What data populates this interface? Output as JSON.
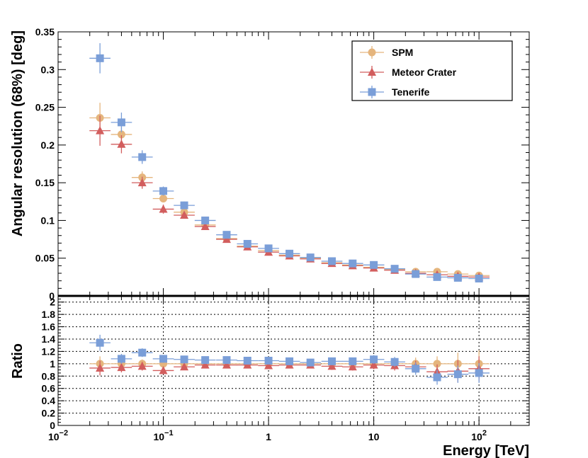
{
  "chart_data": {
    "type": "scatter",
    "x_label": "Energy [TeV]",
    "x_scale": "log",
    "x_range": [
      0.01,
      300
    ],
    "x_ticks": [
      {
        "value": 0.01,
        "base": "10",
        "exp": "−2"
      },
      {
        "value": 0.1,
        "base": "10",
        "exp": "−1"
      },
      {
        "value": 1,
        "base": "1",
        "exp": ""
      },
      {
        "value": 10,
        "base": "10",
        "exp": ""
      },
      {
        "value": 100,
        "base": "10",
        "exp": "2"
      }
    ],
    "top_panel": {
      "y_label": "Angular resolution (68%) [deg]",
      "y_range": [
        0,
        0.35
      ],
      "y_ticks": [
        "0",
        "0.05",
        "0.1",
        "0.15",
        "0.2",
        "0.25",
        "0.3",
        "0.35"
      ],
      "grid": false,
      "legend_position": "top-right"
    },
    "bottom_panel": {
      "y_label": "Ratio",
      "y_range": [
        0,
        2.1
      ],
      "y_ticks": [
        "0",
        "0.2",
        "0.4",
        "0.6",
        "0.8",
        "1",
        "1.2",
        "1.4",
        "1.6",
        "1.8",
        "2"
      ],
      "grid": true
    },
    "energy_bins": [
      0.025,
      0.04,
      0.063,
      0.1,
      0.158,
      0.25,
      0.4,
      0.63,
      1.0,
      1.58,
      2.5,
      4.0,
      6.3,
      10.0,
      15.8,
      25.0,
      40.0,
      63.0,
      100.0
    ],
    "bin_half_width_log10": 0.1,
    "series": [
      {
        "name": "SPM",
        "color": "#E5B57D",
        "marker": "circle",
        "values": [
          0.236,
          0.214,
          0.157,
          0.129,
          0.111,
          0.094,
          0.076,
          0.066,
          0.06,
          0.054,
          0.05,
          0.044,
          0.041,
          0.038,
          0.035,
          0.032,
          0.032,
          0.029,
          0.027
        ],
        "errors": [
          0.02,
          0.01,
          0.008,
          0.005,
          0.004,
          0.003,
          0.003,
          0.002,
          0.002,
          0.002,
          0.002,
          0.002,
          0.002,
          0.002,
          0.002,
          0.002,
          0.002,
          0.002,
          0.002
        ],
        "ratio": [
          1.0,
          1.0,
          1.0,
          1.0,
          1.0,
          1.0,
          1.0,
          1.0,
          1.0,
          1.0,
          1.0,
          1.0,
          1.0,
          1.0,
          1.0,
          1.0,
          1.0,
          1.0,
          1.0
        ],
        "ratio_errors": [
          0.12,
          0.08,
          0.07,
          0.06,
          0.05,
          0.05,
          0.05,
          0.05,
          0.05,
          0.05,
          0.05,
          0.06,
          0.06,
          0.07,
          0.08,
          0.1,
          0.12,
          0.18,
          0.22
        ]
      },
      {
        "name": "Meteor Crater",
        "color": "#D25E5E",
        "marker": "triangle",
        "values": [
          0.219,
          0.201,
          0.15,
          0.115,
          0.107,
          0.092,
          0.075,
          0.065,
          0.058,
          0.053,
          0.049,
          0.043,
          0.04,
          0.037,
          0.034,
          0.03,
          0.028,
          0.026,
          0.025
        ],
        "errors": [
          0.02,
          0.012,
          0.008,
          0.006,
          0.004,
          0.003,
          0.003,
          0.002,
          0.002,
          0.002,
          0.002,
          0.002,
          0.002,
          0.002,
          0.002,
          0.002,
          0.002,
          0.002,
          0.002
        ],
        "ratio": [
          0.93,
          0.94,
          0.96,
          0.89,
          0.95,
          0.98,
          0.98,
          0.98,
          0.97,
          0.98,
          0.98,
          0.96,
          0.95,
          0.98,
          0.97,
          0.95,
          0.87,
          0.88,
          0.92
        ],
        "ratio_errors": [
          0.12,
          0.08,
          0.07,
          0.06,
          0.05,
          0.05,
          0.05,
          0.05,
          0.05,
          0.05,
          0.05,
          0.06,
          0.06,
          0.07,
          0.08,
          0.1,
          0.12,
          0.18,
          0.2
        ]
      },
      {
        "name": "Tenerife",
        "color": "#7A9ED8",
        "marker": "square",
        "values": [
          0.315,
          0.23,
          0.184,
          0.139,
          0.12,
          0.1,
          0.081,
          0.069,
          0.063,
          0.056,
          0.051,
          0.046,
          0.043,
          0.041,
          0.036,
          0.029,
          0.025,
          0.024,
          0.023
        ],
        "errors": [
          0.02,
          0.013,
          0.009,
          0.006,
          0.005,
          0.004,
          0.003,
          0.003,
          0.002,
          0.002,
          0.002,
          0.002,
          0.002,
          0.002,
          0.002,
          0.002,
          0.002,
          0.002,
          0.002
        ],
        "ratio": [
          1.34,
          1.08,
          1.18,
          1.08,
          1.07,
          1.06,
          1.06,
          1.05,
          1.05,
          1.04,
          1.02,
          1.04,
          1.04,
          1.07,
          1.03,
          0.92,
          0.78,
          0.83,
          0.85
        ],
        "ratio_errors": [
          0.13,
          0.08,
          0.07,
          0.06,
          0.05,
          0.05,
          0.05,
          0.05,
          0.05,
          0.05,
          0.05,
          0.06,
          0.06,
          0.07,
          0.08,
          0.1,
          0.12,
          0.14,
          0.16
        ]
      }
    ]
  }
}
